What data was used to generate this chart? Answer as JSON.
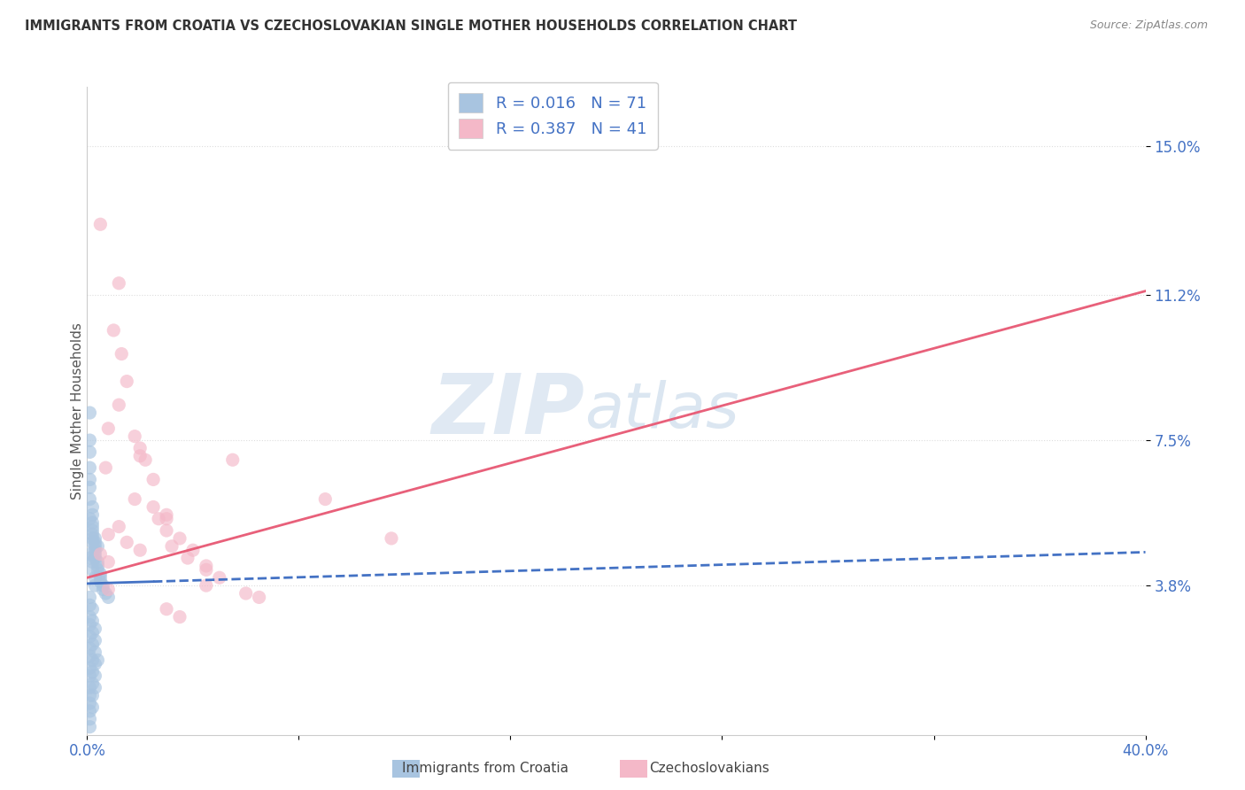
{
  "title": "IMMIGRANTS FROM CROATIA VS CZECHOSLOVAKIAN SINGLE MOTHER HOUSEHOLDS CORRELATION CHART",
  "source": "Source: ZipAtlas.com",
  "ylabel": "Single Mother Households",
  "ytick_labels": [
    "3.8%",
    "7.5%",
    "11.2%",
    "15.0%"
  ],
  "ytick_values": [
    0.038,
    0.075,
    0.112,
    0.15
  ],
  "xlim": [
    0.0,
    0.4
  ],
  "ylim": [
    0.0,
    0.165
  ],
  "legend_label1": "Immigrants from Croatia",
  "legend_label2": "Czechoslovakians",
  "color_croatia": "#a8c4e0",
  "color_czech": "#f4b8c8",
  "color_regression_croatia": "#4472c4",
  "color_regression_czech": "#e8607a",
  "watermark_zip": "ZIP",
  "watermark_atlas": "atlas",
  "grid_color": "#dddddd",
  "background_color": "#ffffff",
  "title_color": "#333333",
  "axis_label_color": "#4472c4",
  "watermark_color_zip": "#c8d8ea",
  "watermark_color_atlas": "#b0c8e0",
  "croatia_regression_solid": [
    0.0,
    0.0385,
    0.025,
    0.039
  ],
  "croatia_regression_dashed": [
    0.025,
    0.039,
    0.4,
    0.0465
  ],
  "czech_regression": [
    0.0,
    0.04,
    0.4,
    0.113
  ],
  "croatia_scatter": [
    [
      0.001,
      0.082
    ],
    [
      0.001,
      0.072
    ],
    [
      0.001,
      0.065
    ],
    [
      0.001,
      0.063
    ],
    [
      0.001,
      0.06
    ],
    [
      0.002,
      0.056
    ],
    [
      0.002,
      0.054
    ],
    [
      0.002,
      0.052
    ],
    [
      0.002,
      0.05
    ],
    [
      0.002,
      0.049
    ],
    [
      0.003,
      0.048
    ],
    [
      0.003,
      0.047
    ],
    [
      0.003,
      0.046
    ],
    [
      0.003,
      0.045
    ],
    [
      0.004,
      0.044
    ],
    [
      0.004,
      0.043
    ],
    [
      0.004,
      0.042
    ],
    [
      0.005,
      0.041
    ],
    [
      0.005,
      0.04
    ],
    [
      0.005,
      0.039
    ],
    [
      0.006,
      0.038
    ],
    [
      0.006,
      0.037
    ],
    [
      0.007,
      0.036
    ],
    [
      0.008,
      0.035
    ],
    [
      0.001,
      0.075
    ],
    [
      0.001,
      0.068
    ],
    [
      0.002,
      0.058
    ],
    [
      0.001,
      0.055
    ],
    [
      0.002,
      0.053
    ],
    [
      0.002,
      0.051
    ],
    [
      0.003,
      0.05
    ],
    [
      0.003,
      0.049
    ],
    [
      0.004,
      0.048
    ],
    [
      0.001,
      0.046
    ],
    [
      0.001,
      0.045
    ],
    [
      0.002,
      0.044
    ],
    [
      0.002,
      0.042
    ],
    [
      0.003,
      0.04
    ],
    [
      0.003,
      0.038
    ],
    [
      0.001,
      0.035
    ],
    [
      0.001,
      0.033
    ],
    [
      0.001,
      0.03
    ],
    [
      0.001,
      0.028
    ],
    [
      0.001,
      0.025
    ],
    [
      0.001,
      0.022
    ],
    [
      0.001,
      0.02
    ],
    [
      0.001,
      0.017
    ],
    [
      0.001,
      0.015
    ],
    [
      0.001,
      0.012
    ],
    [
      0.001,
      0.01
    ],
    [
      0.001,
      0.008
    ],
    [
      0.001,
      0.006
    ],
    [
      0.001,
      0.004
    ],
    [
      0.001,
      0.002
    ],
    [
      0.002,
      0.032
    ],
    [
      0.002,
      0.029
    ],
    [
      0.002,
      0.026
    ],
    [
      0.002,
      0.023
    ],
    [
      0.002,
      0.019
    ],
    [
      0.002,
      0.016
    ],
    [
      0.002,
      0.013
    ],
    [
      0.002,
      0.01
    ],
    [
      0.002,
      0.007
    ],
    [
      0.003,
      0.027
    ],
    [
      0.003,
      0.024
    ],
    [
      0.003,
      0.021
    ],
    [
      0.003,
      0.018
    ],
    [
      0.003,
      0.015
    ],
    [
      0.003,
      0.012
    ],
    [
      0.004,
      0.019
    ]
  ],
  "czech_scatter": [
    [
      0.005,
      0.13
    ],
    [
      0.012,
      0.115
    ],
    [
      0.01,
      0.103
    ],
    [
      0.013,
      0.097
    ],
    [
      0.015,
      0.09
    ],
    [
      0.012,
      0.084
    ],
    [
      0.008,
      0.078
    ],
    [
      0.018,
      0.076
    ],
    [
      0.02,
      0.073
    ],
    [
      0.02,
      0.071
    ],
    [
      0.022,
      0.07
    ],
    [
      0.007,
      0.068
    ],
    [
      0.025,
      0.065
    ],
    [
      0.018,
      0.06
    ],
    [
      0.025,
      0.058
    ],
    [
      0.03,
      0.056
    ],
    [
      0.027,
      0.055
    ],
    [
      0.03,
      0.052
    ],
    [
      0.035,
      0.05
    ],
    [
      0.032,
      0.048
    ],
    [
      0.04,
      0.047
    ],
    [
      0.038,
      0.045
    ],
    [
      0.045,
      0.043
    ],
    [
      0.045,
      0.042
    ],
    [
      0.05,
      0.04
    ],
    [
      0.045,
      0.038
    ],
    [
      0.06,
      0.036
    ],
    [
      0.065,
      0.035
    ],
    [
      0.012,
      0.053
    ],
    [
      0.008,
      0.051
    ],
    [
      0.015,
      0.049
    ],
    [
      0.02,
      0.047
    ],
    [
      0.005,
      0.046
    ],
    [
      0.008,
      0.044
    ],
    [
      0.055,
      0.07
    ],
    [
      0.09,
      0.06
    ],
    [
      0.03,
      0.032
    ],
    [
      0.035,
      0.03
    ],
    [
      0.115,
      0.05
    ],
    [
      0.008,
      0.037
    ],
    [
      0.03,
      0.055
    ]
  ]
}
